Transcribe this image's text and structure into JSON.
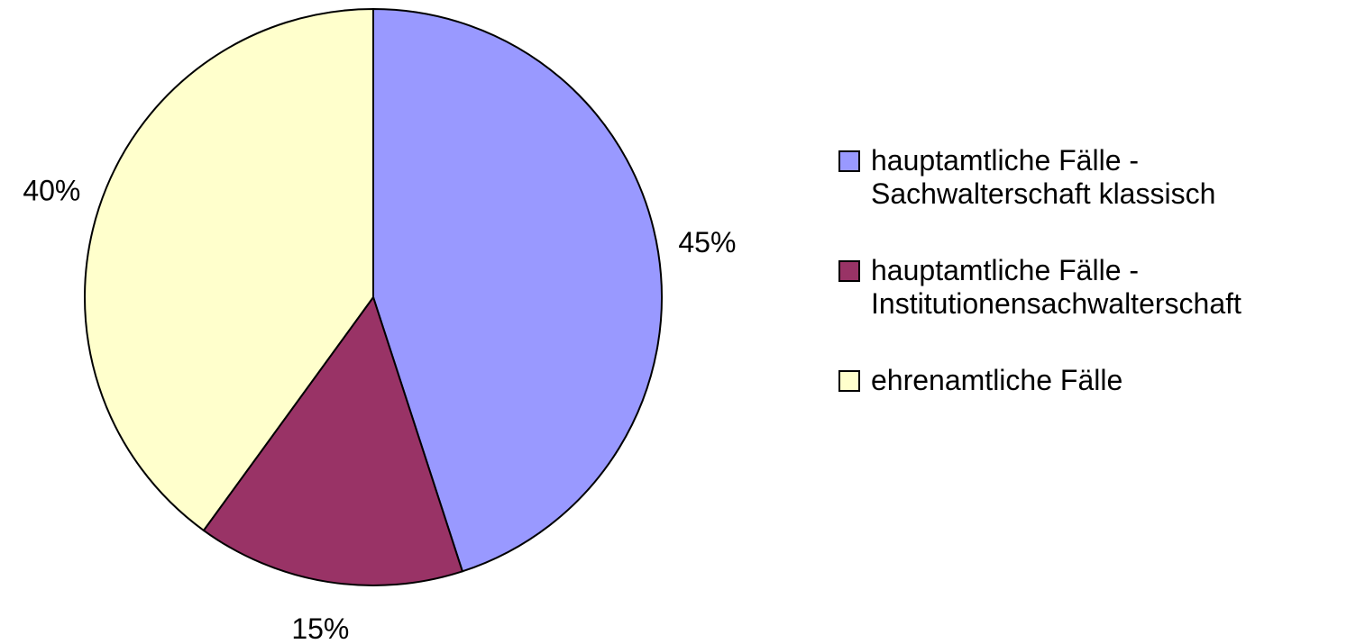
{
  "chart_data": {
    "type": "pie",
    "categories": [
      "hauptamtliche Fälle - Sachwalterschaft klassisch",
      "hauptamtliche Fälle - Institutionensachwalterschaft",
      "ehrenamtliche Fälle"
    ],
    "values": [
      45,
      15,
      40
    ],
    "value_labels": [
      "45%",
      "15%",
      "40%"
    ],
    "colors": [
      "#9999ff",
      "#993366",
      "#ffffcc"
    ],
    "legend": "right"
  }
}
